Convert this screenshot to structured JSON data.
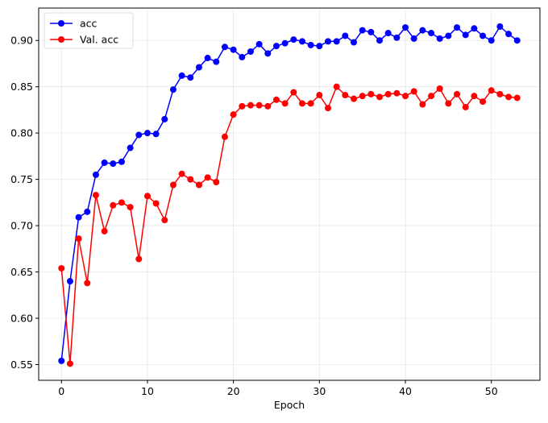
{
  "chart_data": {
    "type": "line",
    "title": "",
    "xlabel": "Epoch",
    "ylabel": "",
    "xlim": [
      -2.65,
      55.65
    ],
    "ylim": [
      0.533,
      0.935
    ],
    "xticks": [
      0,
      10,
      20,
      30,
      40,
      50
    ],
    "yticks": [
      0.55,
      0.6,
      0.65,
      0.7,
      0.75,
      0.8,
      0.85,
      0.9
    ],
    "grid": true,
    "legend_position": "top-left",
    "x": [
      0,
      1,
      2,
      3,
      4,
      5,
      6,
      7,
      8,
      9,
      10,
      11,
      12,
      13,
      14,
      15,
      16,
      17,
      18,
      19,
      20,
      21,
      22,
      23,
      24,
      25,
      26,
      27,
      28,
      29,
      30,
      31,
      32,
      33,
      34,
      35,
      36,
      37,
      38,
      39,
      40,
      41,
      42,
      43,
      44,
      45,
      46,
      47,
      48,
      49,
      50,
      51,
      52,
      53
    ],
    "series": [
      {
        "name": "acc",
        "color": "#0000ff",
        "values": [
          0.554,
          0.64,
          0.709,
          0.715,
          0.755,
          0.768,
          0.767,
          0.769,
          0.784,
          0.798,
          0.8,
          0.799,
          0.815,
          0.847,
          0.862,
          0.86,
          0.871,
          0.881,
          0.877,
          0.893,
          0.89,
          0.882,
          0.888,
          0.896,
          0.886,
          0.894,
          0.897,
          0.901,
          0.899,
          0.895,
          0.894,
          0.899,
          0.899,
          0.905,
          0.898,
          0.911,
          0.909,
          0.9,
          0.908,
          0.903,
          0.914,
          0.902,
          0.911,
          0.908,
          0.902,
          0.905,
          0.914,
          0.906,
          0.913,
          0.905,
          0.9,
          0.915,
          0.907,
          0.9
        ]
      },
      {
        "name": "Val. acc",
        "color": "#ff0000",
        "values": [
          0.654,
          0.551,
          0.686,
          0.638,
          0.733,
          0.694,
          0.722,
          0.725,
          0.72,
          0.664,
          0.732,
          0.724,
          0.706,
          0.744,
          0.756,
          0.75,
          0.744,
          0.752,
          0.747,
          0.796,
          0.82,
          0.829,
          0.83,
          0.83,
          0.829,
          0.836,
          0.832,
          0.844,
          0.832,
          0.832,
          0.841,
          0.827,
          0.85,
          0.841,
          0.837,
          0.84,
          0.842,
          0.839,
          0.842,
          0.843,
          0.84,
          0.845,
          0.831,
          0.84,
          0.848,
          0.832,
          0.842,
          0.828,
          0.84,
          0.834,
          0.846,
          0.842,
          0.839,
          0.838
        ]
      }
    ]
  }
}
